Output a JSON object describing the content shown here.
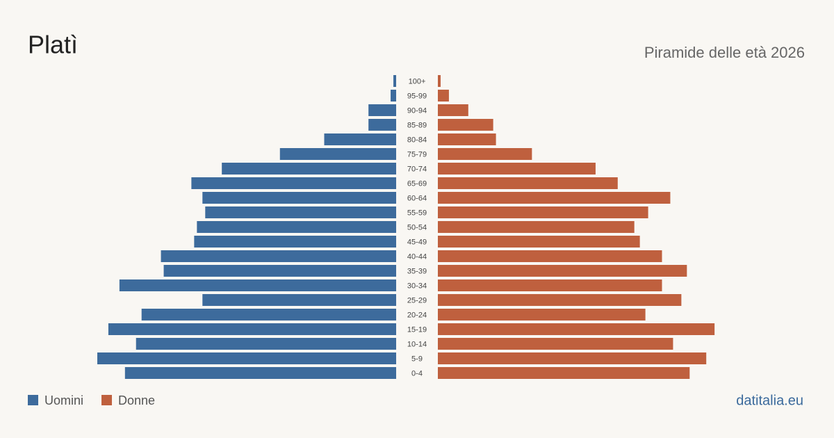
{
  "chart_data": {
    "type": "pyramid",
    "title": "Platì",
    "subtitle": "Piramide delle età 2026",
    "source": "datitalia.eu",
    "categories": [
      "100+",
      "95-99",
      "90-94",
      "85-89",
      "80-84",
      "75-79",
      "70-74",
      "65-69",
      "60-64",
      "55-59",
      "50-54",
      "45-49",
      "40-44",
      "35-39",
      "30-34",
      "25-29",
      "20-24",
      "15-19",
      "10-14",
      "5-9",
      "0-4"
    ],
    "series": [
      {
        "name": "Uomini",
        "color": "#3d6b9c",
        "values": [
          1,
          2,
          10,
          10,
          26,
          42,
          63,
          74,
          70,
          69,
          72,
          73,
          85,
          84,
          100,
          70,
          92,
          104,
          94,
          108,
          98
        ]
      },
      {
        "name": "Donne",
        "color": "#bf603e",
        "values": [
          1,
          4,
          11,
          20,
          21,
          34,
          57,
          65,
          84,
          76,
          71,
          73,
          81,
          90,
          81,
          88,
          75,
          100,
          85,
          97,
          91
        ]
      }
    ],
    "legend": "bottom-left"
  }
}
